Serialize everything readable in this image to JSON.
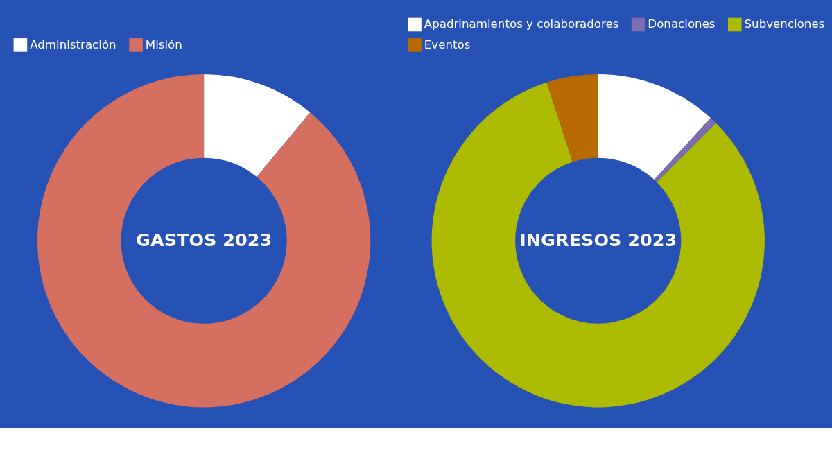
{
  "chart_data": [
    {
      "type": "donut",
      "title": "GASTOS 2023",
      "categories": [
        "Administración",
        "Misión"
      ],
      "values": [
        11,
        89
      ],
      "colors": [
        "#ffffff",
        "#d57060"
      ],
      "legend": "top"
    },
    {
      "type": "donut",
      "title": "INGRESOS 2023",
      "categories": [
        "Apadrinamientos y colaboradores",
        "Donaciones",
        "Subvenciones",
        "Eventos"
      ],
      "values": [
        11.8,
        0.7,
        82.5,
        5
      ],
      "colors": [
        "#ffffff",
        "#7d6db0",
        "#adbb00",
        "#b86a00"
      ],
      "legend": "top"
    }
  ]
}
